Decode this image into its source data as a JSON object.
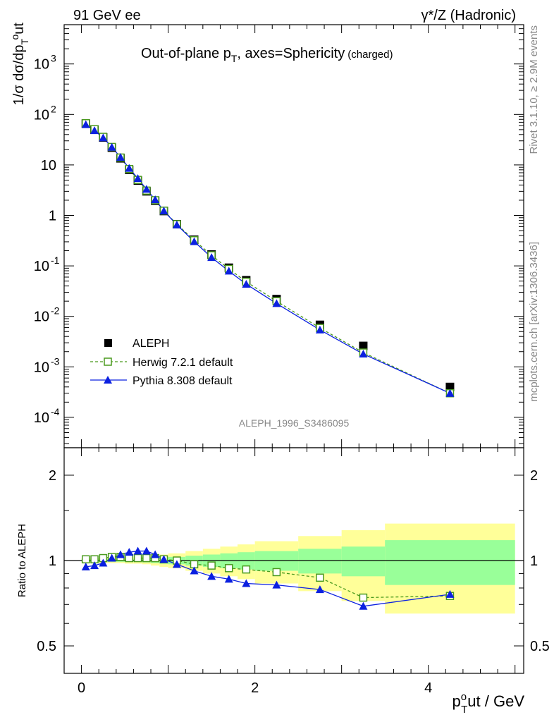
{
  "header": {
    "left": "91 GeV ee",
    "right": "γ*/Z (Hadronic)"
  },
  "side_labels": {
    "rivet": "Rivet 3.1.10, ≥ 2.9M events",
    "mcplots": "mcplots.cern.ch [arXiv:1306.3436]"
  },
  "analysis_id": "ALEPH_1996_S3486095",
  "chart_data": [
    {
      "type": "scatter",
      "scale": "log",
      "title": "Out-of-plane p_T, axes=Sphericity (charged)",
      "title_main": "Out-of-plane p",
      "title_sub": "T",
      "title_rest": ", axes=Sphericity",
      "title_small": "(charged)",
      "ylabel": "1/σ dσ/dp_T^out",
      "xlim": [
        -0.2,
        5.1
      ],
      "ylim": [
        2.5e-05,
        6000
      ],
      "y_ticks": [
        {
          "value": 0.0001,
          "mant": "10",
          "exp": "-4"
        },
        {
          "value": 0.001,
          "mant": "10",
          "exp": "-3"
        },
        {
          "value": 0.01,
          "mant": "10",
          "exp": "-2"
        },
        {
          "value": 0.1,
          "mant": "10",
          "exp": "-1"
        },
        {
          "value": 1,
          "mant": "1",
          "exp": ""
        },
        {
          "value": 10,
          "mant": "10",
          "exp": ""
        },
        {
          "value": 100,
          "mant": "10",
          "exp": "2"
        },
        {
          "value": 1000,
          "mant": "10",
          "exp": "3"
        }
      ],
      "x": [
        0.05,
        0.15,
        0.25,
        0.35,
        0.45,
        0.55,
        0.65,
        0.75,
        0.85,
        0.95,
        1.1,
        1.3,
        1.5,
        1.7,
        1.9,
        2.25,
        2.75,
        3.25,
        4.25
      ],
      "bin_edges": [
        0,
        0.1,
        0.2,
        0.3,
        0.4,
        0.5,
        0.6,
        0.7,
        0.8,
        0.9,
        1.0,
        1.2,
        1.4,
        1.6,
        1.8,
        2.0,
        2.5,
        3.0,
        3.5,
        5.0
      ],
      "series": [
        {
          "name": "ALEPH",
          "marker": "square-filled",
          "color": "#000000",
          "values": [
            66,
            50,
            35,
            22,
            13.5,
            8.0,
            4.9,
            3.0,
            1.95,
            1.22,
            0.67,
            0.33,
            0.168,
            0.092,
            0.052,
            0.022,
            0.0068,
            0.0026,
            0.0004
          ]
        },
        {
          "name": "Herwig 7.2.1 default",
          "marker": "square-open",
          "color": "#4a9a1e",
          "dash": true,
          "values": [
            67,
            51,
            36,
            22.7,
            14,
            8.3,
            5.05,
            3.1,
            2.0,
            1.24,
            0.67,
            0.322,
            0.162,
            0.087,
            0.0485,
            0.02,
            0.0059,
            0.00192,
            0.0003
          ]
        },
        {
          "name": "Pythia 8.308 default",
          "marker": "triangle-filled",
          "color": "#0b20e0",
          "values": [
            63,
            48,
            34.5,
            22.5,
            14.2,
            8.6,
            5.4,
            3.3,
            2.05,
            1.23,
            0.65,
            0.303,
            0.147,
            0.079,
            0.0435,
            0.018,
            0.0054,
            0.0018,
            0.0003
          ]
        }
      ],
      "legend": {
        "placement": "lower-left",
        "entries": [
          "ALEPH",
          "Herwig 7.2.1 default",
          "Pythia 8.308 default"
        ]
      }
    },
    {
      "type": "line",
      "scale": "log",
      "ylabel": "Ratio to ALEPH",
      "xlabel": "p_T^out / GeV",
      "xlabel_main": "p",
      "xlabel_sup": "o",
      "xlabel_sub": "T",
      "xlabel_rest": "ut / GeV",
      "xlim": [
        -0.2,
        5.1
      ],
      "ylim": [
        0.4,
        2.5
      ],
      "x_ticks": [
        {
          "value": 0,
          "label": "0"
        },
        {
          "value": 2,
          "label": "2"
        },
        {
          "value": 4,
          "label": "4"
        }
      ],
      "y_ticks": [
        {
          "value": 0.5,
          "label": "0.5"
        },
        {
          "value": 1,
          "label": "1"
        },
        {
          "value": 2,
          "label": "2"
        }
      ],
      "reference": 1,
      "band_green": [
        0.01,
        0.01,
        0.01,
        0.01,
        0.01,
        0.012,
        0.012,
        0.015,
        0.02,
        0.025,
        0.03,
        0.04,
        0.05,
        0.06,
        0.07,
        0.08,
        0.1,
        0.12,
        0.18
      ],
      "band_yellow": [
        0.02,
        0.02,
        0.02,
        0.02,
        0.02,
        0.025,
        0.025,
        0.03,
        0.04,
        0.05,
        0.06,
        0.08,
        0.1,
        0.12,
        0.14,
        0.17,
        0.22,
        0.28,
        0.35
      ],
      "series": [
        {
          "name": "Herwig 7.2.1 default",
          "marker": "square-open",
          "color": "#4a9a1e",
          "dash": true,
          "values": [
            1.01,
            1.01,
            1.02,
            1.03,
            1.03,
            1.02,
            1.02,
            1.02,
            1.02,
            1.01,
            1.0,
            0.97,
            0.96,
            0.94,
            0.93,
            0.91,
            0.87,
            0.74,
            0.75
          ]
        },
        {
          "name": "Pythia 8.308 default",
          "marker": "triangle-filled",
          "color": "#0b20e0",
          "values": [
            0.95,
            0.96,
            0.98,
            1.02,
            1.05,
            1.07,
            1.08,
            1.08,
            1.05,
            1.01,
            0.97,
            0.92,
            0.88,
            0.86,
            0.83,
            0.82,
            0.79,
            0.69,
            0.76
          ]
        }
      ]
    }
  ]
}
